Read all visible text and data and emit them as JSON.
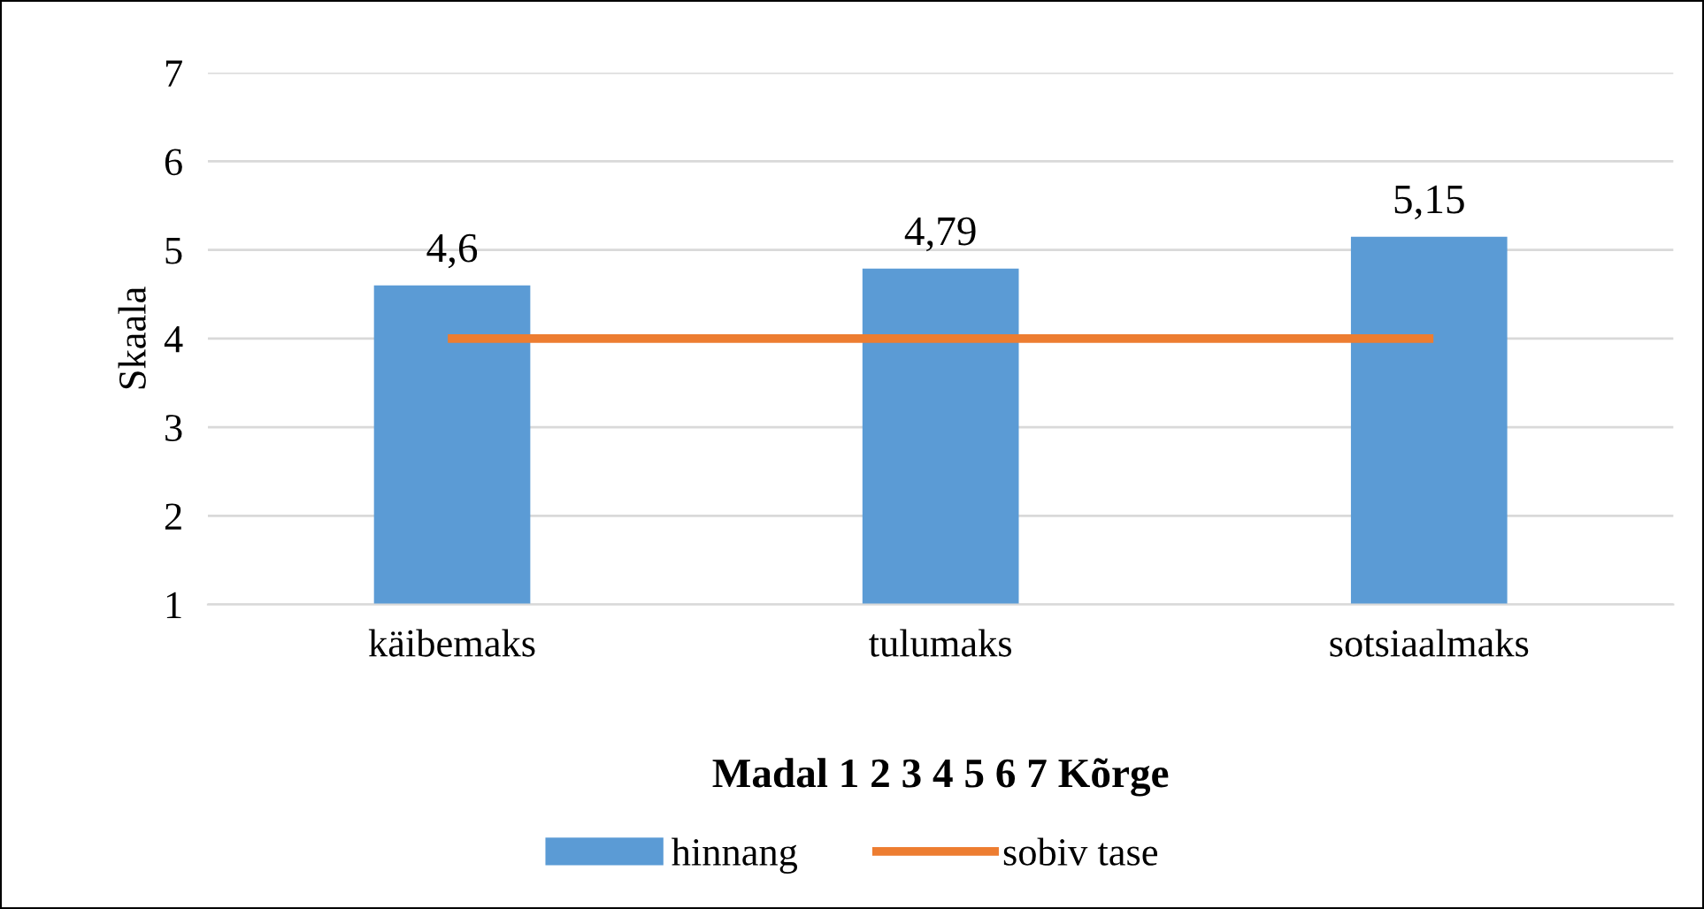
{
  "chart_data": {
    "type": "bar",
    "xlabel": "Madal 1 2 3 4 5 6 7 Kõrge",
    "ylabel": "Skaala",
    "categories": [
      "käibemaks",
      "tulumaks",
      "sotsiaalmaks"
    ],
    "series": [
      {
        "name": "hinnang",
        "color": "#5b9bd5",
        "values": [
          4.6,
          4.79,
          5.15
        ],
        "value_labels": [
          "4,6",
          "4,79",
          "5,15"
        ]
      },
      {
        "name": "sobiv tase",
        "type": "line",
        "color": "#ed7d31",
        "values": [
          4,
          4,
          4
        ]
      }
    ],
    "ylim": [
      1,
      7
    ],
    "yticks": [
      1,
      2,
      3,
      4,
      5,
      6,
      7
    ],
    "grid": "y",
    "legend": "bottom",
    "marker": "none",
    "line_style": "solid"
  }
}
